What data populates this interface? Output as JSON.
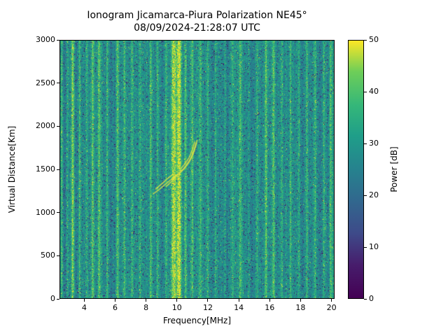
{
  "chart_data": {
    "type": "heatmap",
    "title": "Ionogram Jicamarca-Piura Polarization NE45°",
    "subtitle": "08/09/2024-21:28:07 UTC",
    "xlabel": "Frequency[MHz]",
    "ylabel": "Virtual Distance[Km]",
    "xlim": [
      2.4,
      20.2
    ],
    "ylim": [
      0,
      3000
    ],
    "xticks": [
      4,
      6,
      8,
      10,
      12,
      14,
      16,
      18,
      20
    ],
    "yticks": [
      0,
      500,
      1000,
      1500,
      2000,
      2500,
      3000
    ],
    "colorbar": {
      "label": "Power [dB]",
      "lim": [
        0,
        50
      ],
      "ticks": [
        0,
        10,
        20,
        30,
        40,
        50
      ],
      "colormap": "viridis",
      "colormap_stops": [
        [
          0.0,
          "#440154"
        ],
        [
          0.13,
          "#471d6c"
        ],
        [
          0.25,
          "#3e4a89"
        ],
        [
          0.38,
          "#31688e"
        ],
        [
          0.5,
          "#26828e"
        ],
        [
          0.63,
          "#1f9e89"
        ],
        [
          0.75,
          "#35b779"
        ],
        [
          0.88,
          "#6ece58"
        ],
        [
          1.0,
          "#fde725"
        ]
      ]
    },
    "noise_floor_db": 27,
    "rfi_bands": [
      [
        2.55,
        0.05,
        13
      ],
      [
        2.9,
        0.05,
        9
      ],
      [
        3.25,
        0.08,
        16
      ],
      [
        3.7,
        0.05,
        10
      ],
      [
        4.15,
        0.05,
        8
      ],
      [
        4.55,
        0.06,
        12
      ],
      [
        4.95,
        0.07,
        14
      ],
      [
        5.5,
        0.05,
        9
      ],
      [
        6.15,
        0.06,
        11
      ],
      [
        6.6,
        0.05,
        9
      ],
      [
        7.1,
        0.05,
        8
      ],
      [
        7.6,
        0.05,
        8
      ],
      [
        8.3,
        0.06,
        12
      ],
      [
        8.75,
        0.05,
        10
      ],
      [
        9.3,
        0.06,
        12
      ],
      [
        9.8,
        0.12,
        18
      ],
      [
        10.15,
        0.11,
        20
      ],
      [
        10.55,
        0.06,
        12
      ],
      [
        11.0,
        0.06,
        10
      ],
      [
        11.5,
        0.07,
        13
      ],
      [
        12.0,
        0.06,
        11
      ],
      [
        12.5,
        0.05,
        9
      ],
      [
        13.1,
        0.05,
        8
      ],
      [
        13.6,
        0.05,
        8
      ],
      [
        14.1,
        0.06,
        10
      ],
      [
        14.65,
        0.05,
        9
      ],
      [
        15.2,
        0.05,
        8
      ],
      [
        15.75,
        0.06,
        9
      ],
      [
        16.25,
        0.07,
        13
      ],
      [
        16.8,
        0.05,
        8
      ],
      [
        17.35,
        0.05,
        9
      ],
      [
        17.9,
        0.06,
        10
      ],
      [
        18.4,
        0.05,
        9
      ],
      [
        18.95,
        0.06,
        11
      ],
      [
        19.5,
        0.05,
        9
      ],
      [
        19.95,
        0.07,
        12
      ]
    ],
    "echo_traces": [
      [
        [
          8.45,
          1215
        ],
        [
          8.8,
          1260
        ],
        [
          9.2,
          1320
        ],
        [
          9.6,
          1380
        ],
        [
          9.9,
          1425
        ],
        [
          10.15,
          1455
        ],
        [
          10.45,
          1505
        ],
        [
          10.75,
          1575
        ],
        [
          11.0,
          1655
        ],
        [
          11.2,
          1760
        ],
        [
          11.3,
          1840
        ]
      ],
      [
        [
          9.3,
          1300
        ],
        [
          9.7,
          1370
        ],
        [
          10.0,
          1430
        ],
        [
          10.3,
          1480
        ],
        [
          10.6,
          1545
        ],
        [
          10.9,
          1630
        ],
        [
          11.1,
          1720
        ],
        [
          11.25,
          1810
        ]
      ],
      [
        [
          8.6,
          1270
        ],
        [
          9.0,
          1330
        ],
        [
          9.4,
          1395
        ],
        [
          9.75,
          1445
        ]
      ],
      [
        [
          10.2,
          1500
        ],
        [
          10.5,
          1560
        ],
        [
          10.8,
          1640
        ],
        [
          11.0,
          1730
        ],
        [
          11.15,
          1820
        ]
      ]
    ]
  }
}
